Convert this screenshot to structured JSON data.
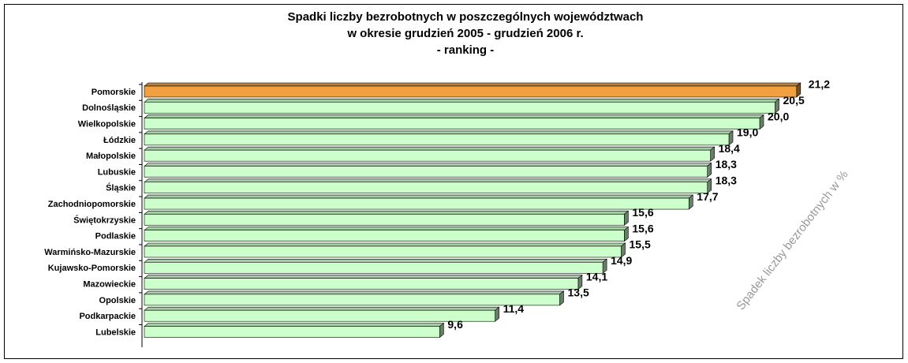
{
  "chart_data": {
    "type": "barh",
    "title": [
      "Spadki liczby bezrobotnych w poszczególnych województwach",
      "w okresie grudzień 2005 - grudzień 2006 r.",
      "- ranking -"
    ],
    "axis_label": "Spadek liczby bezrobotnych w %",
    "categories": [
      "Pomorskie",
      "Dolnośląskie",
      "Wielkopolskie",
      "Łódzkie",
      "Małopolskie",
      "Lubuskie",
      "Śląskie",
      "Zachodniopomorskie",
      "Świętokrzyskie",
      "Podlaskie",
      "Warmińsko-Mazurskie",
      "Kujawsko-Pomorskie",
      "Mazowieckie",
      "Opolskie",
      "Podkarpackie",
      "Lubelskie"
    ],
    "values": [
      21.2,
      20.5,
      20.0,
      19.0,
      18.4,
      18.3,
      18.3,
      17.7,
      15.6,
      15.6,
      15.5,
      14.9,
      14.1,
      13.5,
      11.4,
      9.6
    ],
    "value_labels": [
      "21,2",
      "20,5",
      "20,0",
      "19,0",
      "18,4",
      "18,3",
      "18,3",
      "17,7",
      "15,6",
      "15,6",
      "15,5",
      "14,9",
      "14,1",
      "13,5",
      "11,4",
      "9,6"
    ],
    "colors": [
      "#f0a040",
      "#ccffcc",
      "#ccffcc",
      "#ccffcc",
      "#ccffcc",
      "#ccffcc",
      "#ccffcc",
      "#ccffcc",
      "#ccffcc",
      "#ccffcc",
      "#ccffcc",
      "#ccffcc",
      "#ccffcc",
      "#ccffcc",
      "#ccffcc",
      "#ccffcc"
    ],
    "xlim": [
      0,
      22
    ]
  }
}
